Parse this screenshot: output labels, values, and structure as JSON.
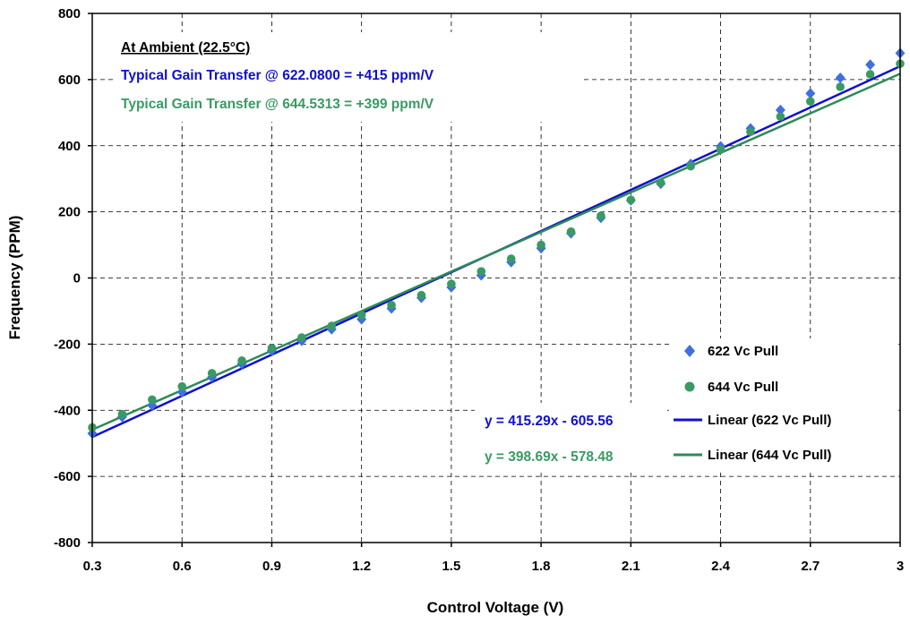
{
  "chart_data": {
    "type": "scatter",
    "title": "",
    "xlabel": "Control Voltage (V)",
    "ylabel": "Frequency (PPM)",
    "xlim": [
      0.3,
      3
    ],
    "ylim": [
      -800,
      800
    ],
    "x_ticks": [
      "0.3",
      "0.6",
      "0.9",
      "1.2",
      "1.5",
      "1.8",
      "2.1",
      "2.4",
      "2.7",
      "3"
    ],
    "x_tick_values": [
      0.3,
      0.6,
      0.9,
      1.2,
      1.5,
      1.8,
      2.1,
      2.4,
      2.7,
      3.0
    ],
    "y_ticks": [
      "800",
      "600",
      "400",
      "200",
      "0",
      "-200",
      "-400",
      "-600",
      "-800"
    ],
    "y_tick_values": [
      800,
      600,
      400,
      200,
      0,
      -200,
      -400,
      -600,
      -800
    ],
    "grid": true,
    "legend_position": "bottom-right",
    "series": [
      {
        "name": "622 Vc Pull",
        "marker": "diamond",
        "color": "#3f6fe0",
        "x": [
          0.3,
          0.4,
          0.5,
          0.6,
          0.7,
          0.8,
          0.9,
          1.0,
          1.1,
          1.2,
          1.3,
          1.4,
          1.5,
          1.6,
          1.7,
          1.8,
          1.9,
          2.0,
          2.1,
          2.2,
          2.3,
          2.4,
          2.5,
          2.6,
          2.7,
          2.8,
          2.9,
          3.0
        ],
        "y": [
          -470,
          -420,
          -385,
          -345,
          -300,
          -260,
          -220,
          -190,
          -155,
          -125,
          -92,
          -60,
          -28,
          8,
          48,
          90,
          135,
          182,
          235,
          285,
          345,
          398,
          452,
          508,
          558,
          605,
          645,
          680
        ]
      },
      {
        "name": "644 Vc Pull",
        "marker": "circle",
        "color": "#3a9a63",
        "x": [
          0.3,
          0.4,
          0.5,
          0.6,
          0.7,
          0.8,
          0.9,
          1.0,
          1.1,
          1.2,
          1.3,
          1.4,
          1.5,
          1.6,
          1.7,
          1.8,
          1.9,
          2.0,
          2.1,
          2.2,
          2.3,
          2.4,
          2.5,
          2.6,
          2.7,
          2.8,
          2.9,
          3.0
        ],
        "y": [
          -452,
          -412,
          -368,
          -328,
          -288,
          -250,
          -212,
          -180,
          -145,
          -112,
          -82,
          -52,
          -18,
          20,
          58,
          100,
          140,
          188,
          236,
          288,
          338,
          388,
          442,
          488,
          534,
          578,
          616,
          648
        ]
      }
    ],
    "trendlines": [
      {
        "name": "Linear (622 Vc Pull)",
        "color": "#1010cc",
        "slope": 415.29,
        "intercept": -605.56,
        "equation": "y = 415.29x - 605.56"
      },
      {
        "name": "Linear (644 Vc Pull)",
        "color": "#2e8b57",
        "slope": 398.69,
        "intercept": -578.48,
        "equation": "y = 398.69x - 578.48"
      }
    ],
    "annotations": {
      "heading": "At Ambient (22.5°C)",
      "gain_622": "Typical Gain Transfer @ 622.0800 = +415 ppm/V",
      "gain_644": "Typical Gain Transfer @ 644.5313 = +399 ppm/V"
    }
  },
  "colors": {
    "text_black": "#000000",
    "blue_annotation": "#1010cc",
    "green_annotation": "#3a9a63"
  }
}
